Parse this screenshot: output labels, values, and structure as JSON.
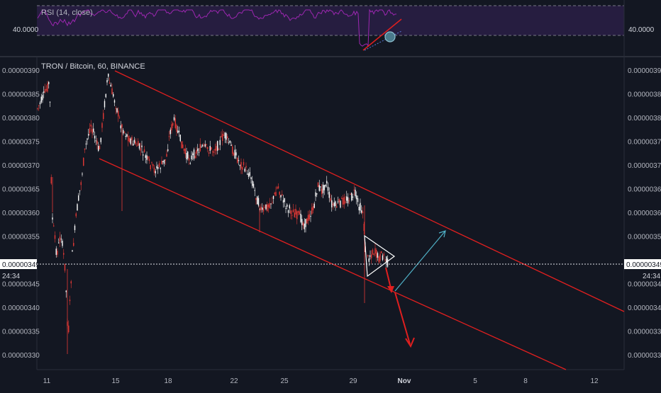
{
  "rsi_pane": {
    "label": "RSI (14, close)",
    "level_label_left": "40.0000",
    "level_label_right": "40.0000",
    "band_color": "#7e57c2",
    "line_color": "#9c27b0",
    "bg_color": "#1e1a2e"
  },
  "main_pane": {
    "label": "TRON / Bitcoin, 60, BINANCE",
    "bg_color": "#131722",
    "up_color": "#ffffff",
    "down_color": "#e53935",
    "channel_color": "#e01f1f",
    "up_arrow_color": "#4fb0c6"
  },
  "axes": {
    "price_ticks": [
      "0.00000390",
      "0.00000385",
      "0.00000380",
      "0.00000375",
      "0.00000370",
      "0.00000365",
      "0.00000360",
      "0.00000355",
      "0.00000350",
      "0.00000345",
      "0.00000340",
      "0.00000335",
      "0.00000330"
    ],
    "date_ticks": [
      "11",
      "15",
      "18",
      "22",
      "25",
      "29",
      "Nov",
      "5",
      "8",
      "12"
    ],
    "current_price": "0.00000349",
    "countdown": "24:34"
  },
  "chart_data": {
    "type": "candlestick",
    "title": "TRON / Bitcoin, 60, BINANCE",
    "ylim": [
      3.28e-06,
      3.92e-06
    ],
    "xlabels": [
      "11",
      "15",
      "18",
      "22",
      "25",
      "29",
      "Nov",
      "5",
      "8",
      "12"
    ],
    "last_price": 3.49e-06,
    "indicator": "RSI (14, close)",
    "rsi_level": 40.0
  }
}
